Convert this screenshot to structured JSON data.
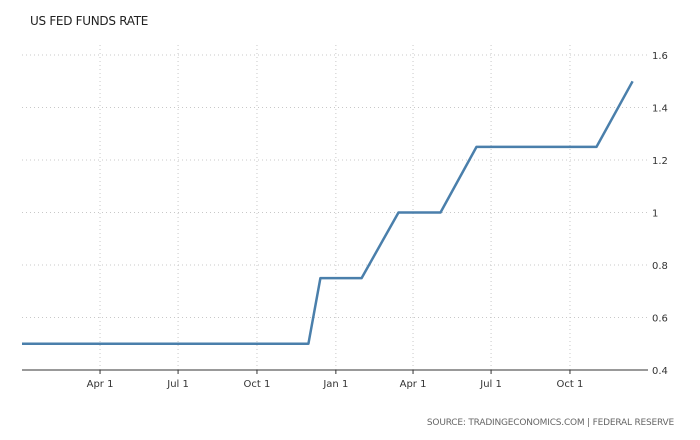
{
  "chart_data": {
    "type": "line",
    "title": "US FED FUNDS RATE",
    "source": "SOURCE: TRADINGECONOMICS.COM | FEDERAL RESERVE",
    "xlabel": "",
    "ylabel": "",
    "ylim": [
      0.4,
      1.6
    ],
    "y_ticks": [
      "0.4",
      "0.6",
      "0.8",
      "1",
      "1.2",
      "1.4",
      "1.6"
    ],
    "x_ticks": [
      "Apr 1",
      "Jul 1",
      "Oct 1",
      "Jan 1",
      "Apr 1",
      "Jul 1",
      "Oct 1"
    ],
    "x_tick_dates": [
      "2016-04-01",
      "2016-07-01",
      "2016-10-01",
      "2017-01-01",
      "2017-04-01",
      "2017-07-01",
      "2017-10-01"
    ],
    "xlim": [
      "2016-01-01",
      "2017-12-31"
    ],
    "grid": true,
    "line_color": "#4a7fab",
    "series": [
      {
        "name": "",
        "x": [
          "2016-01-01",
          "2016-11-30",
          "2016-12-14",
          "2017-01-31",
          "2017-03-15",
          "2017-05-03",
          "2017-06-14",
          "2017-11-01",
          "2017-12-13"
        ],
        "values": [
          0.5,
          0.5,
          0.75,
          0.75,
          1.0,
          1.0,
          1.25,
          1.25,
          1.5
        ]
      }
    ]
  }
}
